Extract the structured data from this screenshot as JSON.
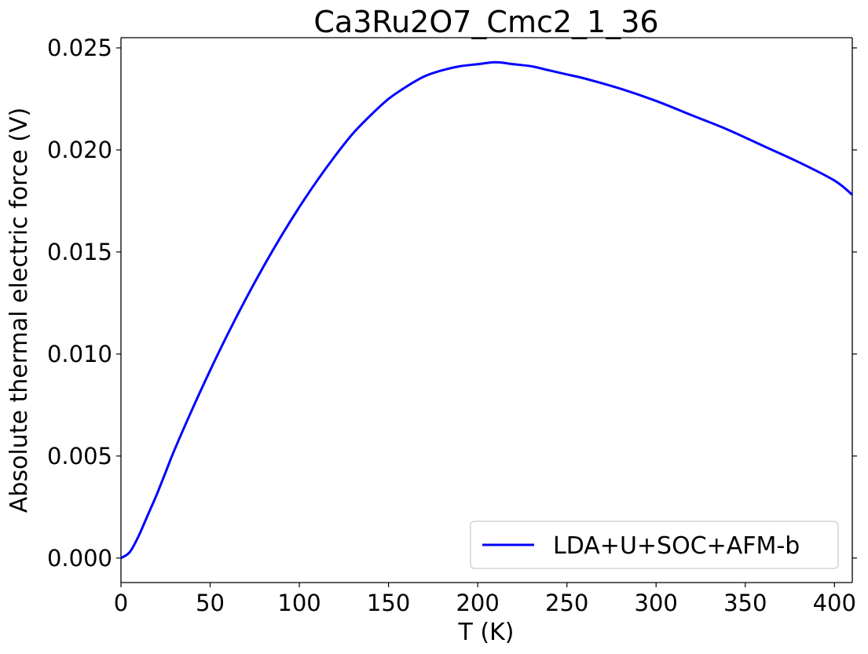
{
  "chart_data": {
    "type": "line",
    "title": "Ca3Ru2O7_Cmc2_1_36",
    "xlabel": "T (K)",
    "ylabel": "Absolute thermal electric force (V)",
    "xlim": [
      0,
      410
    ],
    "ylim": [
      -0.0012,
      0.0255
    ],
    "xticks": [
      0,
      50,
      100,
      150,
      200,
      250,
      300,
      350,
      400
    ],
    "xtick_labels": [
      "0",
      "50",
      "100",
      "150",
      "200",
      "250",
      "300",
      "350",
      "400"
    ],
    "yticks": [
      0.0,
      0.005,
      0.01,
      0.015,
      0.02,
      0.025
    ],
    "ytick_labels": [
      "0.000",
      "0.005",
      "0.010",
      "0.015",
      "0.020",
      "0.025"
    ],
    "grid": false,
    "legend_position": "lower-right",
    "series": [
      {
        "name": "LDA+U+SOC+AFM-b",
        "color": "#0000ff",
        "x": [
          0,
          5,
          10,
          15,
          20,
          25,
          30,
          40,
          50,
          60,
          70,
          80,
          90,
          100,
          110,
          120,
          130,
          140,
          150,
          160,
          170,
          180,
          190,
          200,
          210,
          220,
          230,
          240,
          250,
          260,
          280,
          300,
          320,
          340,
          360,
          380,
          400,
          410
        ],
        "y": [
          0.0,
          0.0003,
          0.0011,
          0.0021,
          0.0031,
          0.0042,
          0.0053,
          0.0073,
          0.0092,
          0.011,
          0.0127,
          0.0143,
          0.0158,
          0.0172,
          0.0185,
          0.0197,
          0.0208,
          0.0217,
          0.0225,
          0.0231,
          0.0236,
          0.0239,
          0.0241,
          0.0242,
          0.0243,
          0.0242,
          0.0241,
          0.0239,
          0.0237,
          0.0235,
          0.023,
          0.0224,
          0.0217,
          0.021,
          0.0202,
          0.0194,
          0.0185,
          0.0178
        ]
      }
    ]
  }
}
